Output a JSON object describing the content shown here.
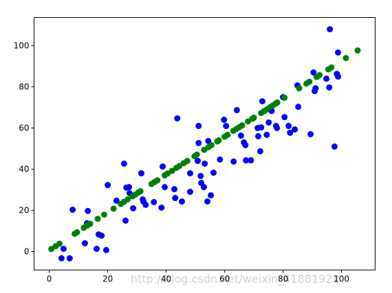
{
  "chart_data": {
    "type": "scatter",
    "watermark": "http://blog.csdn.net/weixin_41881922",
    "xlim": [
      -5.2,
      111.5
    ],
    "ylim": [
      -9,
      113.7
    ],
    "xticks": [
      0,
      20,
      40,
      60,
      80,
      100
    ],
    "yticks": [
      0,
      20,
      40,
      60,
      80,
      100
    ],
    "series": [
      {
        "color": "#0000ff",
        "x": [
          4.9,
          4.2,
          7,
          8,
          12.2,
          13.2,
          12.9,
          16.2,
          16.9,
          17.9,
          19.5,
          20,
          23,
          25.6,
          26.1,
          26.4,
          27.3,
          27.5,
          28.7,
          31.5,
          32,
          33,
          32.2,
          35.8,
          38.8,
          38.4,
          39.5,
          42.8,
          43.1,
          43.8,
          45.4,
          48.2,
          48.2,
          50.8,
          51.1,
          51.1,
          51.8,
          52,
          52.9,
          53.2,
          54.4,
          54.1,
          55.3,
          56.2,
          58.4,
          59.8,
          60.5,
          63.1,
          64.2,
          65.6,
          66.6,
          67.1,
          67.3,
          69,
          71.3,
          71.5,
          72.2,
          72.5,
          72.9,
          74.4,
          75.1,
          75.6,
          76.1,
          77.6,
          77.9,
          80,
          80.5,
          81.9,
          82.4,
          84,
          84.9,
          85.2,
          89.4,
          90.4,
          91.1,
          90.8,
          94.8,
          95.8,
          96,
          97.6,
          98.4,
          98.8,
          98.8
        ],
        "values": [
          1.3,
          -3.3,
          -3.3,
          20.3,
          4,
          19.7,
          13.7,
          1.3,
          8.3,
          7.7,
          0.7,
          32.3,
          24.7,
          42.7,
          15,
          31,
          31.3,
          28.3,
          21,
          38,
          25.3,
          22.7,
          24.3,
          24,
          41.3,
          21.3,
          31.3,
          30.3,
          26,
          64.7,
          24.3,
          38,
          29,
          44,
          61,
          52.7,
          36.7,
          33.3,
          31.3,
          42.7,
          53.7,
          24.3,
          27.3,
          38.3,
          44.7,
          64,
          61,
          43.7,
          68.7,
          56.3,
          53,
          51.7,
          44.3,
          44.3,
          60,
          56,
          48.7,
          60.3,
          73,
          56.7,
          62.7,
          69.3,
          68.3,
          61,
          60,
          75,
          65.3,
          61,
          57.7,
          59.3,
          80.7,
          70.3,
          57,
          87,
          79.3,
          78,
          84,
          79.7,
          108,
          51,
          86.3,
          96.7,
          85
        ]
      },
      {
        "color": "#008000",
        "x": [
          0.7,
          2.2,
          3.5,
          8.7,
          9.5,
          11.8,
          13,
          14,
          16.6,
          18.8,
          22,
          24.5,
          25.5,
          26.8,
          28.5,
          29.5,
          30.5,
          31.2,
          35,
          36,
          37,
          39.5,
          40.5,
          42,
          43.5,
          44.5,
          46,
          47.2,
          49.7,
          50.5,
          53,
          54.5,
          55.5,
          57.5,
          58,
          60,
          61,
          63,
          64,
          65,
          66,
          68,
          69.5,
          70,
          72.5,
          73.5,
          74.5,
          75.5,
          76.5,
          77.5,
          78,
          80.5,
          85.5,
          88,
          89,
          91.5,
          92.5,
          95.5,
          96.5,
          101.5,
          105.5
        ],
        "values": [
          1.2,
          2.6,
          3.8,
          8.6,
          9.3,
          11.5,
          12.6,
          13.5,
          15.9,
          17.9,
          20.8,
          23.1,
          24.1,
          25.3,
          26.8,
          27.7,
          28.7,
          29.3,
          32.8,
          33.7,
          34.6,
          37,
          37.9,
          39.2,
          40.6,
          41.5,
          42.9,
          44,
          46.3,
          47.1,
          49.4,
          50.7,
          51.7,
          53.5,
          54,
          55.8,
          56.7,
          58.6,
          59.5,
          60.4,
          61.3,
          63.2,
          64.5,
          65,
          67.3,
          68.2,
          69.1,
          70.1,
          71,
          71.9,
          72.4,
          74.7,
          79.3,
          81.6,
          82.5,
          84.8,
          85.7,
          88.5,
          89.4,
          94,
          97.7
        ]
      }
    ]
  }
}
